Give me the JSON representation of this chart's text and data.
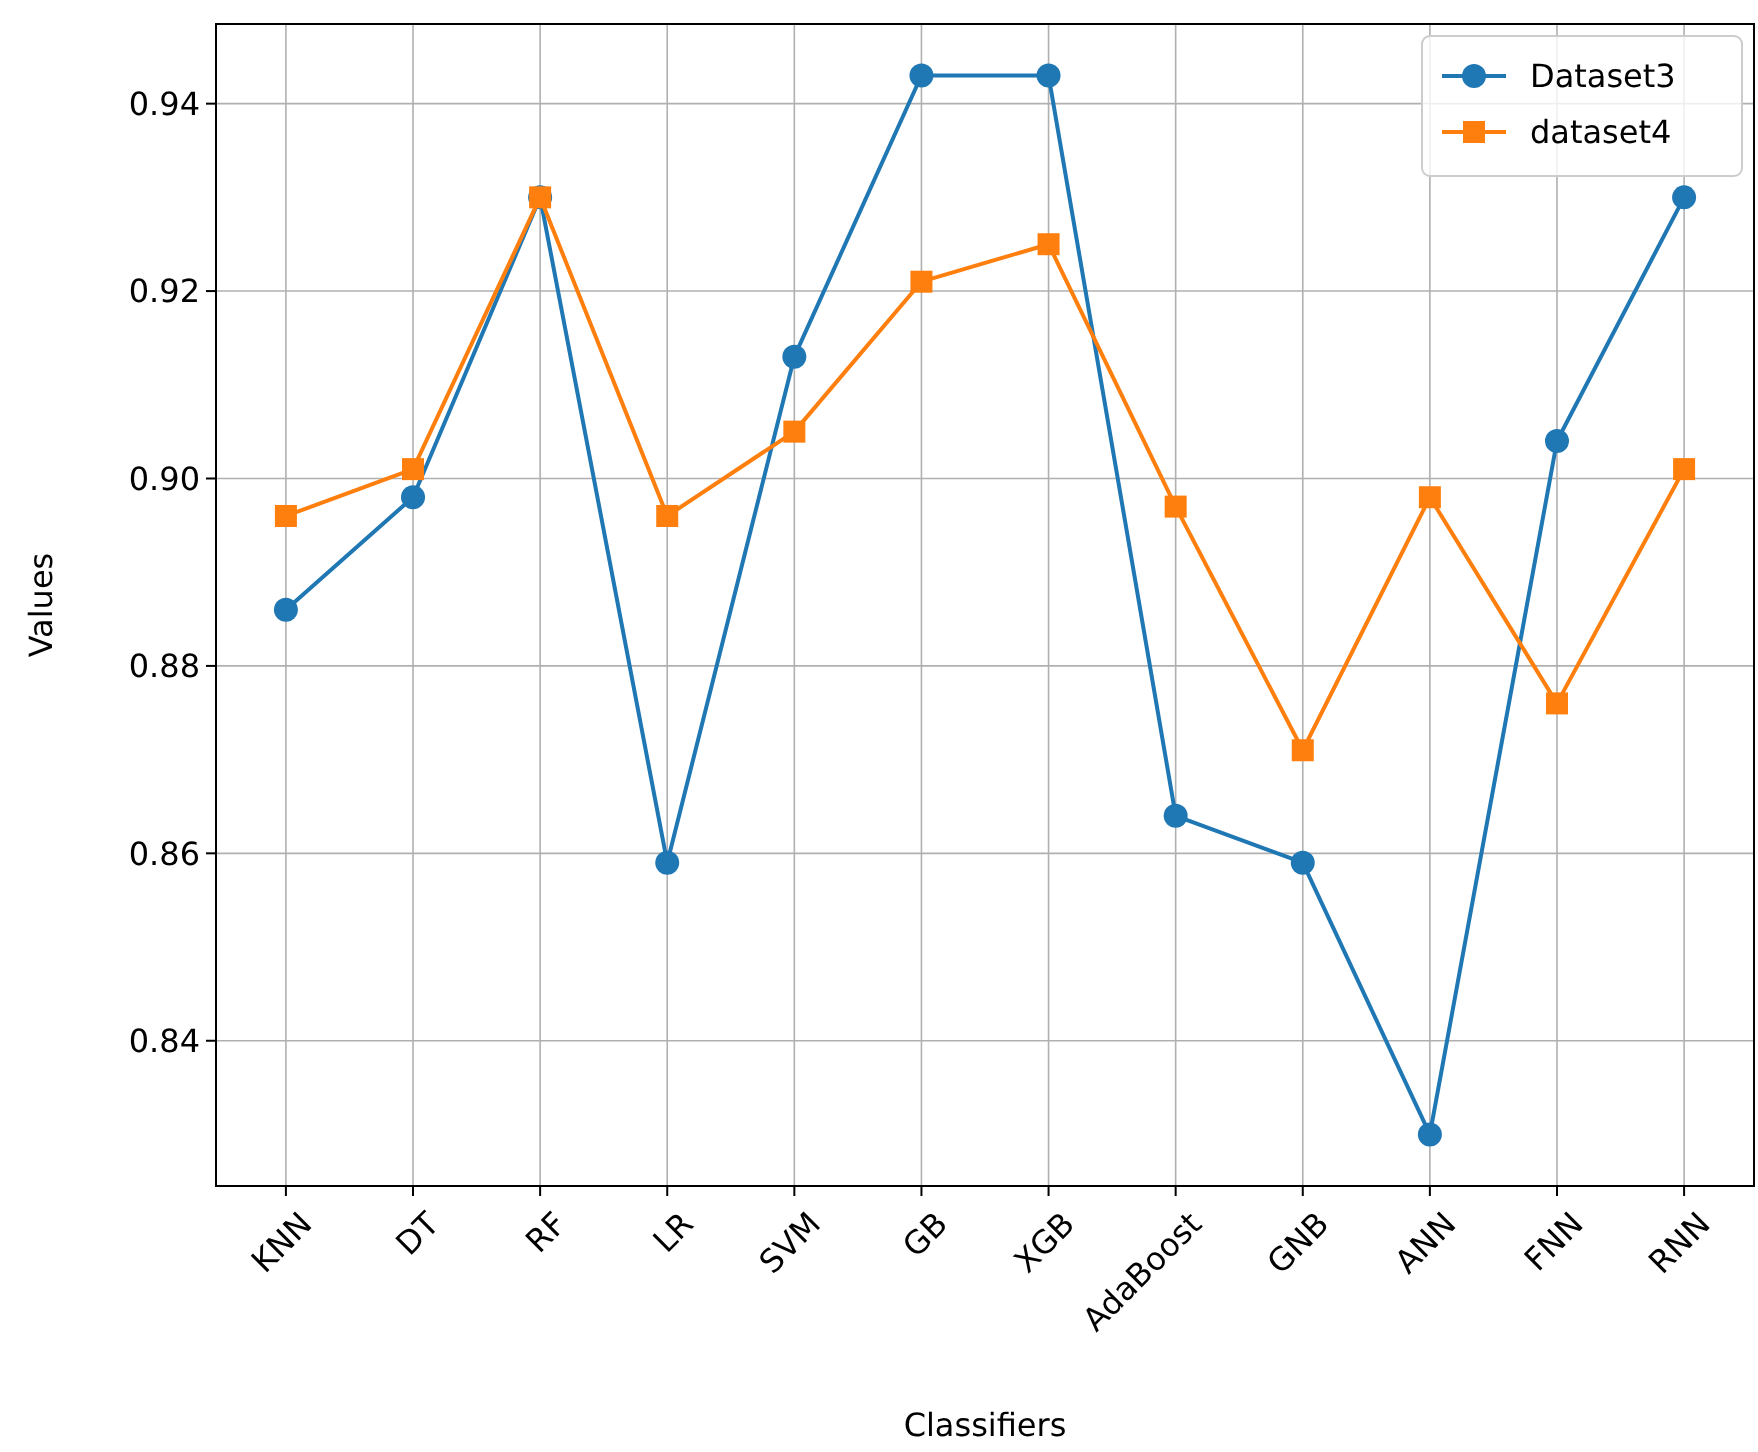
{
  "chart_data": {
    "type": "line",
    "xlabel": "Classifiers",
    "ylabel": "Values",
    "categories": [
      "KNN",
      "DT",
      "RF",
      "LR",
      "SVM",
      "GB",
      "XGB",
      "AdaBoost",
      "GNB",
      "ANN",
      "FNN",
      "RNN"
    ],
    "series": [
      {
        "name": "Dataset3",
        "color": "#1f77b4",
        "marker": "circle",
        "values": [
          0.886,
          0.898,
          0.93,
          0.859,
          0.913,
          0.943,
          0.943,
          0.864,
          0.859,
          0.83,
          0.904,
          0.93
        ]
      },
      {
        "name": "dataset4",
        "color": "#ff7f0e",
        "marker": "square",
        "values": [
          0.896,
          0.901,
          0.93,
          0.896,
          0.905,
          0.921,
          0.925,
          0.897,
          0.871,
          0.898,
          0.876,
          0.901
        ]
      }
    ],
    "ylim": [
      0.8245,
      0.9485
    ],
    "yticks": [
      0.84,
      0.86,
      0.88,
      {
        "value": 0.9,
        "label": "0.90"
      },
      0.92,
      0.94
    ],
    "grid": true,
    "legend": "top right",
    "line_style": "solid"
  }
}
